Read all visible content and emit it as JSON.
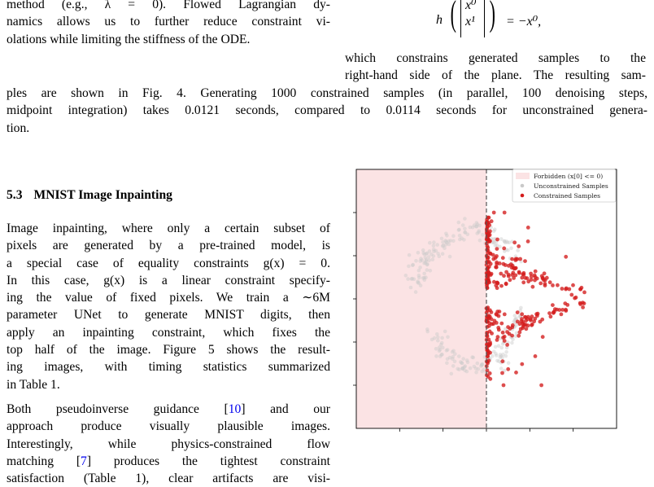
{
  "top_left": {
    "lines": [
      "method (e.g., λ = 0). Flowed Lagrangian dy-",
      "namics allows us to further reduce constraint vi-",
      "olations while limiting the stiffness of the ODE."
    ]
  },
  "equation": {
    "lhs": "h",
    "vector_top": "x⁰",
    "vector_bottom": "x¹",
    "rhs": "= −x⁰,"
  },
  "right_text": {
    "lines": [
      "which constrains generated samples to the",
      "right-hand side of the plane. The resulting sam-"
    ]
  },
  "full_text": {
    "lines": [
      "ples are shown in Fig. 4. Generating 1000 constrained samples (in parallel, 100 denoising steps,",
      "midpoint integration) takes 0.0121 seconds, compared to 0.0114 seconds for unconstrained genera-",
      "tion."
    ]
  },
  "section": {
    "number": "5.3",
    "title": "MNIST Image Inpainting"
  },
  "para1": {
    "lines": [
      "Image inpainting, where only a certain subset of",
      "pixels are generated by a pre-trained model, is",
      "a special case of equality constraints g(x) = 0.",
      "In this case, g(x) is a linear constraint specify-",
      "ing the value of fixed pixels. We train a ∼6M",
      "parameter UNet to generate MNIST digits, then",
      "apply an inpainting constraint, which fixes the",
      "top half of the image. Figure 5 shows the result-",
      "ing images, with timing statistics summarized",
      "in Table 1."
    ]
  },
  "para2": {
    "line1_text": "Both pseudoinverse guidance [",
    "line1_cite": "10",
    "line1_end": "] and our",
    "line2": "approach produce visually plausible images.",
    "line3": "Interestingly, while physics-constrained flow",
    "line4_text": "matching [",
    "line4_cite": "7",
    "line4_end": "] produces the tightest constraint",
    "line5": "satisfaction (Table 1), clear artifacts are visi-"
  },
  "figure": {
    "legend": {
      "forbidden": "Forbidden (x[0] <= 0)",
      "unconstrained": "Unconstrained Samples",
      "constrained": "Constrained Samples"
    },
    "colors": {
      "forbidden": "#fbe3e4",
      "unconstrained": "#c9c9c9",
      "constrained": "#d41c1c"
    }
  },
  "chart_data": {
    "type": "scatter",
    "title": "",
    "xlabel": "",
    "ylabel": "",
    "xlim": [
      -3,
      3
    ],
    "ylim": [
      -3,
      3
    ],
    "tick_labels": "not shown",
    "grid": false,
    "legend_position": "top-right",
    "forbidden_region": {
      "x_min": -3,
      "x_max": 0
    },
    "boundary_line_x": 0,
    "series": [
      {
        "name": "Unconstrained Samples",
        "shape": "two-moons / S-curve spanning both halves",
        "x_range": [
          -1.7,
          0.9
        ],
        "y_range": [
          -1.9,
          1.9
        ],
        "count": 1000
      },
      {
        "name": "Constrained Samples",
        "shape": "right-facing arrow pointing along x, piled at x=0",
        "x_range": [
          0,
          2.6
        ],
        "y_range": [
          -1.9,
          1.9
        ],
        "count": 1000
      }
    ]
  }
}
